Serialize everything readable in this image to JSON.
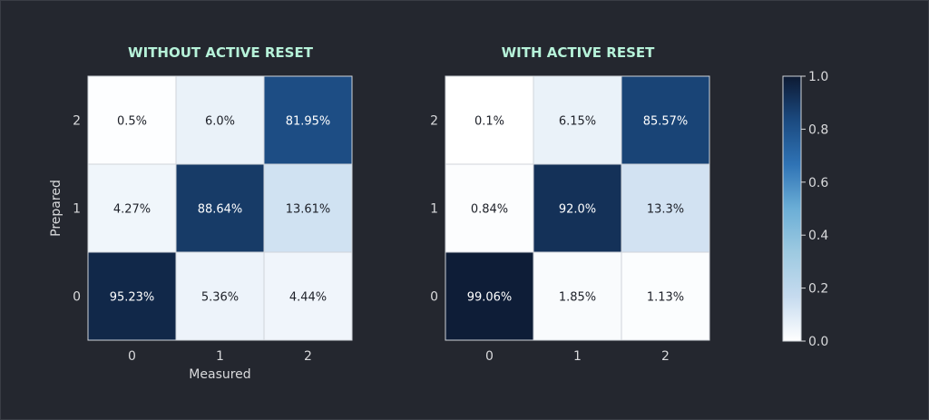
{
  "chart_data": [
    {
      "type": "heatmap",
      "title": "WITHOUT ACTIVE RESET",
      "xlabel": "Measured",
      "ylabel": "Prepared",
      "x_categories": [
        "0",
        "1",
        "2"
      ],
      "y_categories": [
        "0",
        "1",
        "2"
      ],
      "rows": [
        {
          "prepared": "2",
          "values": [
            0.005,
            0.06,
            0.8195
          ],
          "labels": [
            "0.5%",
            "6.0%",
            "81.95%"
          ]
        },
        {
          "prepared": "1",
          "values": [
            0.0427,
            0.8864,
            0.1361
          ],
          "labels": [
            "4.27%",
            "88.64%",
            "13.61%"
          ]
        },
        {
          "prepared": "0",
          "values": [
            0.9523,
            0.0536,
            0.0444
          ],
          "labels": [
            "95.23%",
            "5.36%",
            "4.44%"
          ]
        }
      ]
    },
    {
      "type": "heatmap",
      "title": "WITH ACTIVE RESET",
      "xlabel": "",
      "ylabel": "",
      "x_categories": [
        "0",
        "1",
        "2"
      ],
      "y_categories": [
        "0",
        "1",
        "2"
      ],
      "rows": [
        {
          "prepared": "2",
          "values": [
            0.001,
            0.0615,
            0.8557
          ],
          "labels": [
            "0.1%",
            "6.15%",
            "85.57%"
          ]
        },
        {
          "prepared": "1",
          "values": [
            0.0084,
            0.92,
            0.133
          ],
          "labels": [
            "0.84%",
            "92.0%",
            "13.3%"
          ]
        },
        {
          "prepared": "0",
          "values": [
            0.9906,
            0.0185,
            0.0113
          ],
          "labels": [
            "99.06%",
            "1.85%",
            "1.13%"
          ]
        }
      ]
    }
  ],
  "colorbar": {
    "range": [
      0.0,
      1.0
    ],
    "ticks": [
      "0.0",
      "0.2",
      "0.4",
      "0.6",
      "0.8",
      "1.0"
    ],
    "colors": [
      "#ffffff",
      "#c6dbef",
      "#9ecae1",
      "#6baed6",
      "#2f73b5",
      "#1b4a80",
      "#0d1a33"
    ]
  },
  "colors": {
    "background": "#24272f",
    "title": "#b6f2d9",
    "text": "#d9dadc"
  }
}
